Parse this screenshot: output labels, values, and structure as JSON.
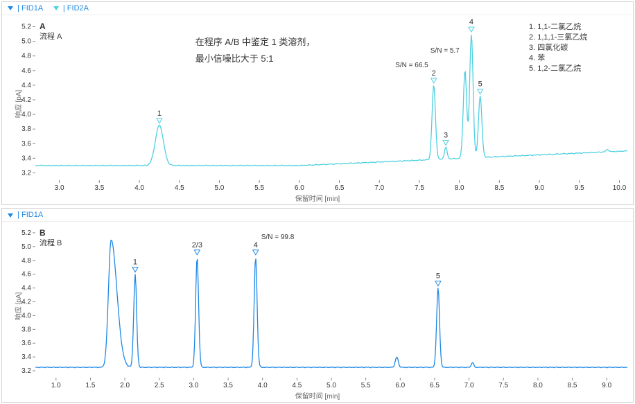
{
  "chartA": {
    "legend_items": [
      {
        "label": "| FID1A",
        "color": "#1e88e5"
      },
      {
        "label": "| FID2A",
        "color": "#4dd0e1"
      }
    ],
    "panel_letter": "A",
    "panel_subtitle": "流程 A",
    "caption_line1": "在程序 A/B 中鉴定 1 类溶剂，",
    "caption_line2": "最小信噪比大于 5:1",
    "compound_list": [
      {
        "n": "1.",
        "name": "1,1-二氯乙烷"
      },
      {
        "n": "2.",
        "name": "1,1,1-三氯乙烷"
      },
      {
        "n": "3.",
        "name": "四氯化碳"
      },
      {
        "n": "4.",
        "name": "苯"
      },
      {
        "n": "5.",
        "name": "1,2-二氯乙烷"
      }
    ],
    "ylabel": "响应 [pA]",
    "xlabel": "保留时间 [min]",
    "xlim": [
      2.7,
      10.1
    ],
    "ylim": [
      3.1,
      5.3
    ],
    "xticks": [
      3.0,
      3.5,
      4.0,
      4.5,
      5.0,
      5.5,
      6.0,
      6.5,
      7.0,
      7.5,
      8.0,
      8.5,
      9.0,
      9.5,
      10.0
    ],
    "yticks": [
      3.2,
      3.4,
      3.6,
      3.8,
      4.0,
      4.2,
      4.4,
      4.6,
      4.8,
      5.0,
      5.2
    ],
    "baseline_y": 3.3,
    "baseline_rise_start": 6.0,
    "baseline_rise_end": 10.1,
    "baseline_end_y": 3.5,
    "peaks": [
      {
        "x": 4.25,
        "h": 3.85,
        "w": 0.12,
        "label": "1",
        "marker": "#4dd0e1"
      },
      {
        "x": 7.68,
        "h": 4.4,
        "w": 0.05,
        "label": "2",
        "sn": "S/N = 66.5",
        "marker": "#4dd0e1"
      },
      {
        "x": 7.83,
        "h": 3.55,
        "w": 0.04,
        "label": "3",
        "marker": "#4dd0e1"
      },
      {
        "x": 8.07,
        "h": 4.6,
        "w": 0.05,
        "sn": "S/N = 5.7",
        "color": "#1e88e5"
      },
      {
        "x": 8.15,
        "h": 5.1,
        "w": 0.05,
        "label": "4",
        "marker": "#4dd0e1"
      },
      {
        "x": 8.26,
        "h": 4.25,
        "w": 0.05,
        "label": "5",
        "marker": "#4dd0e1"
      },
      {
        "x": 9.85,
        "h": 3.52,
        "w": 0.04
      }
    ],
    "line_color": "#4dd0e1",
    "tick_color": "#888",
    "text_color": "#333",
    "tick_fontsize": 10,
    "label_fontsize": 10
  },
  "chartB": {
    "legend_items": [
      {
        "label": "| FID1A",
        "color": "#1e88e5"
      }
    ],
    "panel_letter": "B",
    "panel_subtitle": "流程 B",
    "ylabel": "响应 [pA]",
    "xlabel": "保留时间 [min]",
    "xlim": [
      0.7,
      9.3
    ],
    "ylim": [
      3.1,
      5.3
    ],
    "xticks": [
      1.0,
      1.5,
      2.0,
      2.5,
      3.0,
      3.5,
      4.0,
      4.5,
      5.0,
      5.5,
      6.0,
      6.5,
      7.0,
      7.5,
      8.0,
      8.5,
      9.0
    ],
    "yticks": [
      3.2,
      3.4,
      3.6,
      3.8,
      4.0,
      4.2,
      4.4,
      4.6,
      4.8,
      5.0,
      5.2
    ],
    "baseline_y": 3.25,
    "peaks": [
      {
        "x": 1.8,
        "h": 5.1,
        "w": 0.09,
        "tail": 0.3
      },
      {
        "x": 2.15,
        "h": 4.6,
        "w": 0.05,
        "label": "1",
        "marker": "#1e88e5"
      },
      {
        "x": 3.05,
        "h": 4.85,
        "w": 0.05,
        "label": "2/3",
        "marker": "#1e88e5"
      },
      {
        "x": 3.9,
        "h": 4.85,
        "w": 0.05,
        "label": "4",
        "marker": "#1e88e5",
        "sn": "S/N = 99.8"
      },
      {
        "x": 5.95,
        "h": 3.4,
        "w": 0.05
      },
      {
        "x": 6.55,
        "h": 4.4,
        "w": 0.05,
        "label": "5",
        "marker": "#1e88e5"
      },
      {
        "x": 7.05,
        "h": 3.32,
        "w": 0.04
      }
    ],
    "line_color": "#1e88e5",
    "tick_color": "#888",
    "text_color": "#333",
    "tick_fontsize": 10,
    "label_fontsize": 10
  }
}
